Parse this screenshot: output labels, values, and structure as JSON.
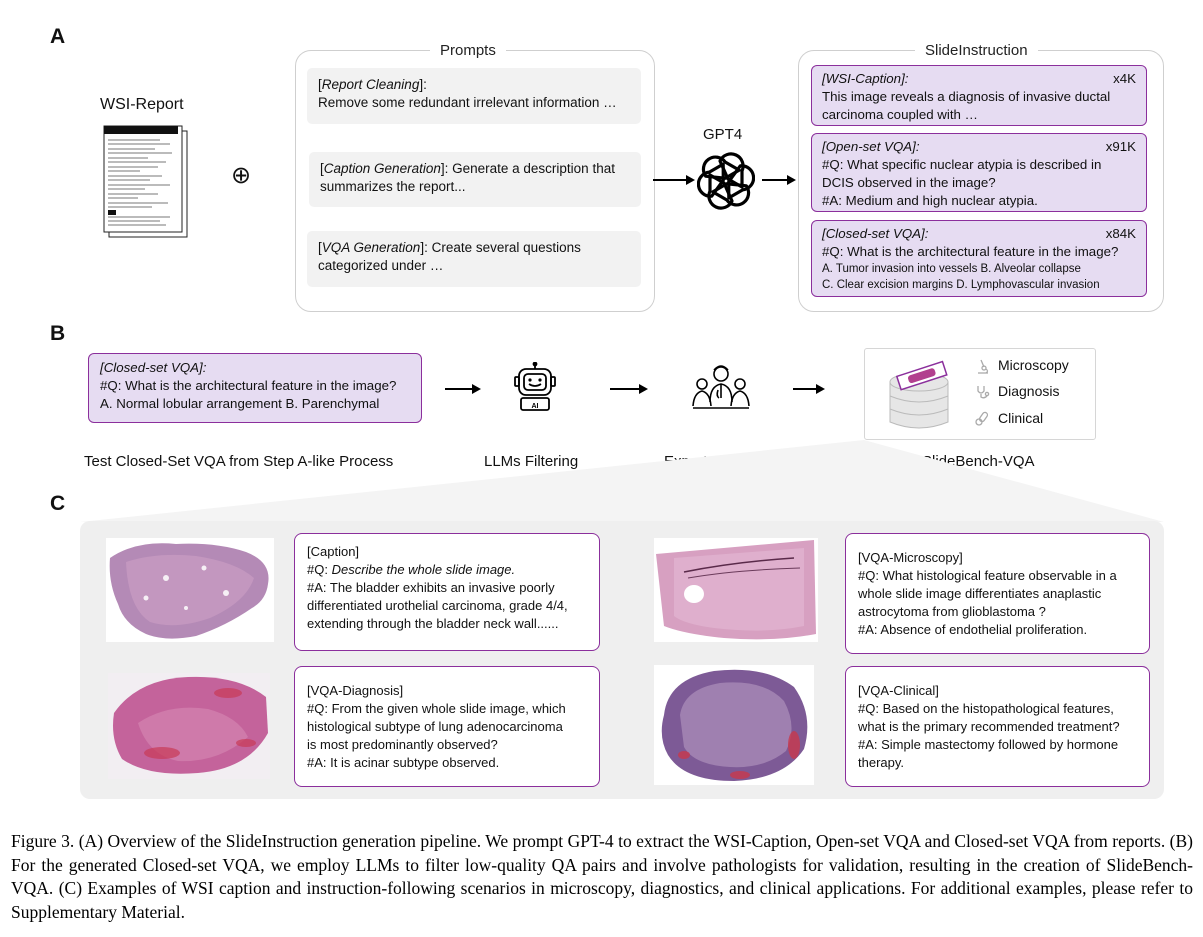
{
  "sections": {
    "a": "A",
    "b": "B",
    "c": "C"
  },
  "panel_a": {
    "wsi_report_label": "WSI-Report",
    "plus_symbol": "⊕",
    "prompts_title": "Prompts",
    "prompts": [
      {
        "tag": "Report Cleaning",
        "text_after_tag": ":",
        "rest": "Remove some redundant irrelevant information …"
      },
      {
        "tag": "Caption Generation",
        "text_after_tag": ": Generate a description that",
        "rest": "summarizes the report..."
      },
      {
        "tag": "VQA Generation",
        "text_after_tag": ": Create several questions",
        "rest": "categorized under …"
      }
    ],
    "gpt_label": "GPT4",
    "slideinstruction_title": "SlideInstruction",
    "cards": [
      {
        "tag": "[WSI-Caption]:",
        "count": "x4K",
        "lines": [
          "This image reveals a diagnosis of invasive ductal",
          "carcinoma coupled with …"
        ]
      },
      {
        "tag": "[Open-set VQA]:",
        "count": "x91K",
        "lines": [
          "#Q: What specific nuclear atypia is described in",
          "DCIS observed in the image?",
          "#A: Medium and high nuclear atypia."
        ]
      },
      {
        "tag": "[Closed-set VQA]:",
        "count": "x84K",
        "lines": [
          "#Q: What is the architectural feature in the image?"
        ],
        "small_lines": [
          "A. Tumor invasion into vessels   B. Alveolar collapse",
          "C. Clear excision margins    D. Lymphovascular invasion"
        ]
      }
    ]
  },
  "panel_b": {
    "card": {
      "tag": "[Closed-set VQA]:",
      "lines": [
        "#Q: What is the architectural feature in the image?",
        "A. Normal lobular arrangement B. Parenchymal"
      ]
    },
    "labels": [
      "Test Closed-Set VQA  from Step A-like Process",
      "LLMs Filtering",
      "Expert Validation",
      "SlideBench-VQA"
    ],
    "bench_items": [
      "Microscopy",
      "Diagnosis",
      "Clinical"
    ]
  },
  "panel_c": {
    "examples": [
      {
        "title": "[Caption]",
        "q_prefix": "#Q: ",
        "q_italic": "Describe the whole slide image.",
        "lines": [
          "#A: The bladder exhibits an invasive poorly",
          "differentiated urothelial carcinoma, grade 4/4,",
          "extending through the bladder neck wall......"
        ]
      },
      {
        "title": "[VQA-Microscopy]",
        "q_prefix": "",
        "q_italic": "",
        "lines": [
          "#Q: What histological feature observable in a",
          "whole slide image differentiates anaplastic",
          "astrocytoma  from glioblastoma ?",
          "#A: Absence of endothelial proliferation."
        ]
      },
      {
        "title": "[VQA-Diagnosis]",
        "q_prefix": "",
        "q_italic": "",
        "lines": [
          "#Q: From the given whole slide image, which",
          "histological subtype of lung adenocarcinoma",
          "is most predominantly observed?",
          "#A: It is acinar subtype observed."
        ]
      },
      {
        "title": "[VQA-Clinical]",
        "q_prefix": "",
        "q_italic": "",
        "lines": [
          "#Q: Based on the histopathological features,",
          "what is the primary recommended treatment?",
          "#A: Simple mastectomy followed by hormone",
          "therapy."
        ]
      }
    ]
  },
  "caption": "Figure 3. (A) Overview of the SlideInstruction generation pipeline. We prompt GPT-4 to extract the WSI-Caption, Open-set VQA and Closed-set VQA from reports. (B) For the generated Closed-set VQA, we employ LLMs to filter low-quality QA pairs and involve pathologists for validation, resulting in the creation of SlideBench-VQA. (C) Examples of WSI caption and instruction-following scenarios in microscopy, diagnostics, and clinical applications. For additional examples, please refer to Supplementary Material.",
  "colors": {
    "accent": "#8b2f9c",
    "card_fill": "#e6dcf2",
    "prompt_fill": "#f2f2f2",
    "panel_c_bg": "#efefef"
  }
}
